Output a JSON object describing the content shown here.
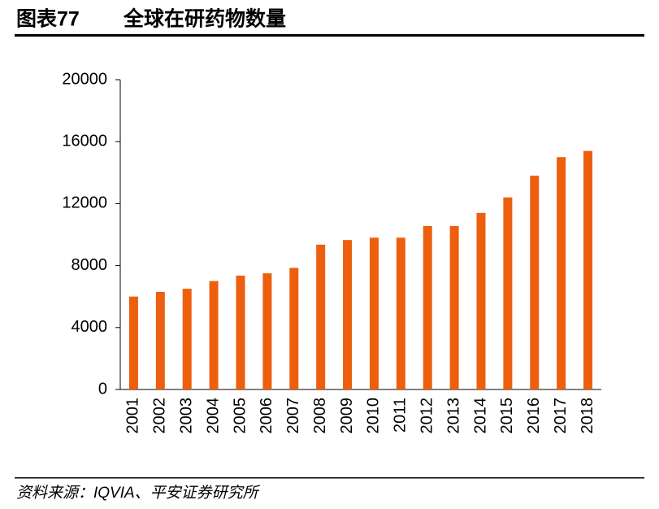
{
  "chart_data": {
    "type": "bar",
    "figure_label": "图表77",
    "title": "全球在研药物数量",
    "source": "资料来源：IQVIA、平安证券研究所",
    "categories": [
      "2001",
      "2002",
      "2003",
      "2004",
      "2005",
      "2006",
      "2007",
      "2008",
      "2009",
      "2010",
      "2011",
      "2012",
      "2013",
      "2014",
      "2015",
      "2016",
      "2017",
      "2018"
    ],
    "values": [
      6000,
      6300,
      6500,
      7000,
      7350,
      7500,
      7850,
      9350,
      9650,
      9800,
      9800,
      10550,
      10550,
      11400,
      12400,
      13800,
      15000,
      15400
    ],
    "color": "#ec5f0e",
    "ylim": [
      0,
      20000
    ],
    "yticks": [
      0,
      4000,
      8000,
      12000,
      16000,
      20000
    ],
    "grid": false
  }
}
